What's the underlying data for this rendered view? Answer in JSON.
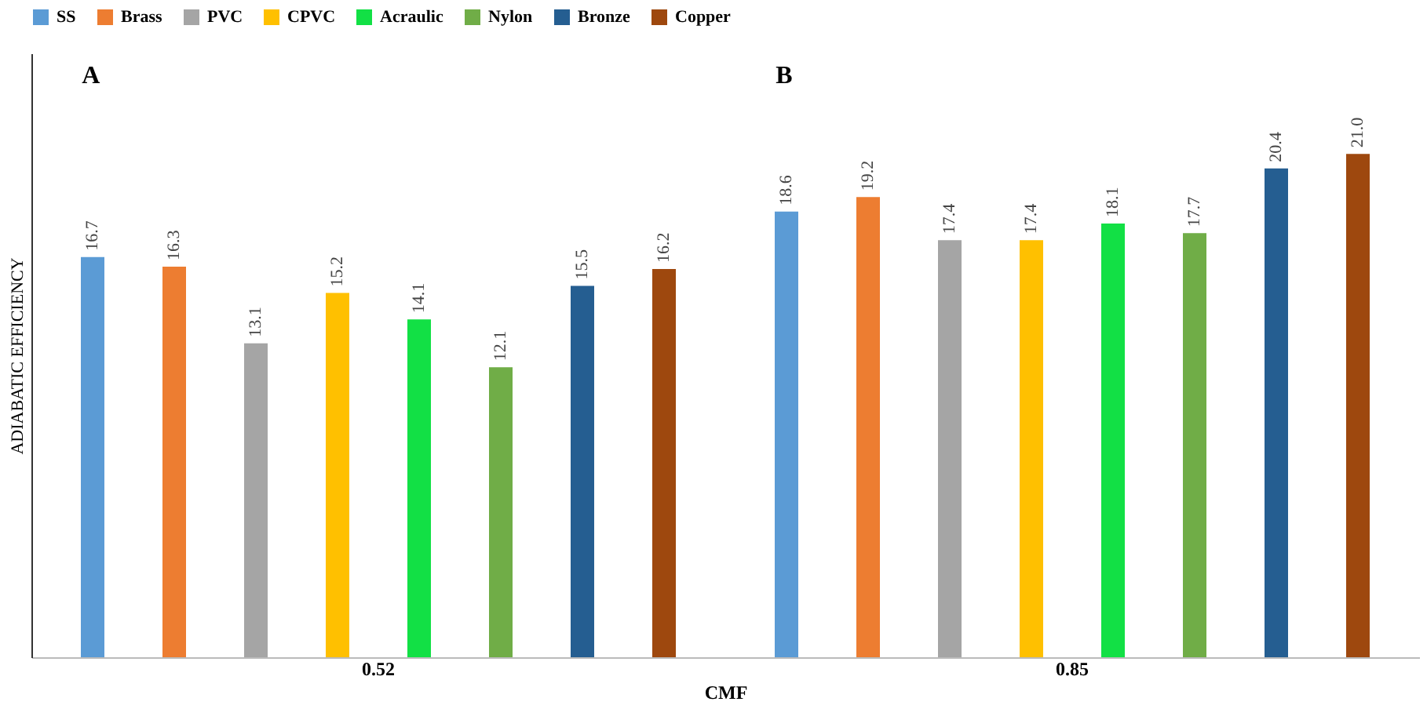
{
  "chart_data": {
    "type": "bar",
    "xlabel": "CMF",
    "ylabel": "ADIABATIC EFFICIENCY",
    "categories": [
      "0.52",
      "0.85"
    ],
    "series": [
      {
        "name": "SS",
        "color": "#5b9bd5",
        "values": [
          16.7,
          18.6
        ],
        "value_labels": [
          "16.7",
          "18.6"
        ]
      },
      {
        "name": "Brass",
        "color": "#ed7d31",
        "values": [
          16.3,
          19.2
        ],
        "value_labels": [
          "16.3",
          "19.2"
        ]
      },
      {
        "name": "PVC",
        "color": "#a5a5a5",
        "values": [
          13.1,
          17.4
        ],
        "value_labels": [
          "13.1",
          "17.4"
        ]
      },
      {
        "name": "CPVC",
        "color": "#ffc000",
        "values": [
          15.2,
          17.4
        ],
        "value_labels": [
          "15.2",
          "17.4"
        ]
      },
      {
        "name": "Acraulic",
        "color": "#12e045",
        "values": [
          14.1,
          18.1
        ],
        "value_labels": [
          "14.1",
          "18.1"
        ]
      },
      {
        "name": "Nylon",
        "color": "#70ad47",
        "values": [
          12.1,
          17.7
        ],
        "value_labels": [
          "12.1",
          "17.7"
        ]
      },
      {
        "name": "Bronze",
        "color": "#255e91",
        "values": [
          15.5,
          20.4
        ],
        "value_labels": [
          "15.5",
          "20.4"
        ]
      },
      {
        "name": "Copper",
        "color": "#9e480e",
        "values": [
          16.2,
          21.0
        ],
        "value_labels": [
          "16.2",
          "21.0"
        ]
      }
    ],
    "annotations": [
      "A",
      "B"
    ],
    "legend": "top",
    "grid": false,
    "tick_labels": "x"
  }
}
